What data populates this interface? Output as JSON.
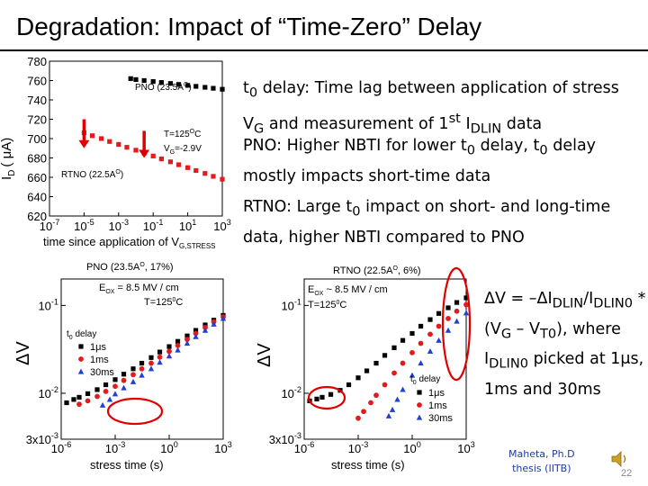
{
  "title": "Degradation: Impact of “Time-Zero” Delay",
  "bullets": {
    "b1": {
      "t": "t",
      "s1": "0",
      "m1": " delay: Time lag between application of stress V",
      "s2": "G",
      "m2": " and measurement of 1",
      "s3": "st",
      "m3": " I",
      "s4": "DLIN",
      "m4": " data"
    },
    "b2": {
      "t": "PNO: Higher NBTI for lower t",
      "s1": "0",
      "m1": " delay, t",
      "s2": "0",
      "m2": " delay mostly impacts short-time data"
    },
    "b3": {
      "t": "RTNO: Large t",
      "s1": "0",
      "m1": " impact on short- and long-time data, higher NBTI compared to PNO"
    },
    "b4": {
      "p1": "ΔV = –ΔI",
      "s1": "DLIN",
      "p2": "/I",
      "s2": "DLIN0",
      "p3": " * (V",
      "s3": "G",
      "p4": " – V",
      "s4": "T0",
      "p5": "), where I",
      "s5": "DLIN0",
      "p6": " picked at 1μs, 1ms and 30ms"
    }
  },
  "credit": {
    "line1": "Maheta, Ph.D",
    "line2": "thesis (IITB)"
  },
  "page_number": "22",
  "colors": {
    "black": "#000000",
    "red": "#e41a1c",
    "blue": "#1f3fd6",
    "annotation_red": "#e00000"
  },
  "chart_data": [
    {
      "type": "scatter",
      "xlabel": "time since application of V",
      "xlabel_sub": "G,STRESS",
      "ylabel": "I",
      "ylabel_sub": "D",
      "ylabel_unit": "( μA)",
      "x_log": true,
      "xlim": [
        1e-07,
        1000.0
      ],
      "ylim": [
        620,
        780
      ],
      "yticks": [
        "780",
        "760",
        "740",
        "720",
        "700",
        "680",
        "660",
        "640",
        "620"
      ],
      "xticks": [
        "10",
        "10",
        "10",
        "10",
        "10",
        "10"
      ],
      "xtick_exp": [
        "-7",
        "-5",
        "-3",
        "-1",
        "1",
        "3"
      ],
      "annotations": {
        "pno": "PNO (23.5A",
        "pno_sup": "O",
        "pno_close": ")",
        "cond1": "T=125",
        "cond1_sup": "O",
        "cond1_end": "C",
        "cond2": "V",
        "cond2_sub": "G",
        "cond2_end": "=-2.9V",
        "rtno": "RTNO (22.5A",
        "rtno_sup": "O",
        "rtno_close": ")"
      },
      "series": [
        {
          "color": "#000000",
          "x": [
            0.005,
            0.01,
            0.03,
            0.1,
            0.3,
            1,
            3,
            10,
            30,
            100,
            300,
            1000
          ],
          "y": [
            762,
            761,
            760,
            759,
            758,
            757,
            756,
            755,
            754,
            753,
            752,
            751
          ]
        },
        {
          "color": "#e41a1c",
          "x": [
            1e-05,
            3e-05,
            0.0001,
            0.0003,
            0.001,
            0.003,
            0.01,
            0.03,
            0.1,
            0.3,
            1,
            3,
            10,
            30,
            100,
            300,
            1000
          ],
          "y": [
            706,
            703,
            700,
            697,
            694,
            691,
            688,
            685,
            682,
            679,
            676,
            673,
            670,
            667,
            664,
            661,
            658
          ]
        }
      ],
      "arrows": [
        {
          "x": 1e-05,
          "y_from": 720,
          "y_to": 690
        },
        {
          "x": 0.03,
          "y_from": 708,
          "y_to": 680
        }
      ]
    },
    {
      "type": "scatter",
      "title": "PNO (23.5A",
      "title_sup": "O",
      "title_end": ", 17%)",
      "xlabel": "stress time (s)",
      "ylabel": "ΔV",
      "x_log": true,
      "y_log": true,
      "xlim": [
        1e-06,
        1000.0
      ],
      "ylim": [
        0.003,
        0.2
      ],
      "ytick_labels": [
        "10",
        "10",
        "3x10"
      ],
      "ytick_exp": [
        "-1",
        "-2",
        "-3"
      ],
      "xtick_labels": [
        "10",
        "10",
        "10",
        "10"
      ],
      "xtick_exp": [
        "-6",
        "-3",
        "0",
        "3"
      ],
      "conditions": {
        "eox": "E",
        "eox_sub": "OX",
        "eox_end": " = 8.5 MV / cm",
        "temp": "T=125",
        "temp_sup": "0",
        "temp_end": "C"
      },
      "legend_title": "t",
      "legend_title_sub": "0",
      "legend_title_end": " delay",
      "series": [
        {
          "name": "1μs",
          "color": "#000000",
          "marker": "square",
          "x": [
            2e-06,
            5e-06,
            1e-05,
            3e-05,
            0.0001,
            0.0003,
            0.001,
            0.003,
            0.01,
            0.03,
            0.1,
            0.3,
            1,
            3,
            10,
            30,
            100,
            300,
            1000
          ],
          "y": [
            0.0078,
            0.0085,
            0.009,
            0.0099,
            0.011,
            0.0125,
            0.0143,
            0.0165,
            0.019,
            0.022,
            0.0255,
            0.0295,
            0.034,
            0.039,
            0.045,
            0.052,
            0.06,
            0.068,
            0.077
          ]
        },
        {
          "name": "1ms",
          "color": "#e41a1c",
          "marker": "circle",
          "x": [
            1e-05,
            3e-05,
            0.0001,
            0.0003,
            0.001,
            0.003,
            0.01,
            0.03,
            0.1,
            0.3,
            1,
            3,
            10,
            30,
            100,
            300,
            1000
          ],
          "y": [
            0.0075,
            0.0082,
            0.0092,
            0.0105,
            0.012,
            0.014,
            0.0163,
            0.019,
            0.022,
            0.0258,
            0.03,
            0.035,
            0.041,
            0.048,
            0.056,
            0.065,
            0.074
          ]
        },
        {
          "name": "30ms",
          "color": "#1f3fd6",
          "marker": "triangle",
          "x": [
            0.0002,
            0.0005,
            0.001,
            0.003,
            0.01,
            0.03,
            0.1,
            0.3,
            1,
            3,
            10,
            30,
            100,
            300,
            1000
          ],
          "y": [
            0.0073,
            0.0085,
            0.0098,
            0.0115,
            0.0135,
            0.016,
            0.019,
            0.0225,
            0.0265,
            0.031,
            0.037,
            0.044,
            0.052,
            0.061,
            0.071
          ]
        }
      ]
    },
    {
      "type": "scatter",
      "title": "RTNO (22.5A",
      "title_sup": "O",
      "title_end": ", 6%)",
      "xlabel": "stress time (s)",
      "ylabel": "ΔV",
      "x_log": true,
      "y_log": true,
      "xlim": [
        1e-06,
        1000.0
      ],
      "ylim": [
        0.003,
        0.2
      ],
      "ytick_labels": [
        "10",
        "10",
        "3x10"
      ],
      "ytick_exp": [
        "-1",
        "-2",
        "-3"
      ],
      "xtick_labels": [
        "10",
        "10",
        "10",
        "10"
      ],
      "xtick_exp": [
        "-6",
        "-3",
        "0",
        "3"
      ],
      "conditions": {
        "eox": "E",
        "eox_sub": "OX",
        "eox_end": " ~ 8.5 MV / cm",
        "temp": "T=125",
        "temp_sup": "0",
        "temp_end": "C"
      },
      "legend_title": "t",
      "legend_title_sub": "0",
      "legend_title_end": " delay",
      "series": [
        {
          "name": "1μs",
          "color": "#000000",
          "marker": "square",
          "x": [
            2e-06,
            5e-06,
            1e-05,
            3e-05,
            0.0001,
            0.0003,
            0.001,
            0.003,
            0.01,
            0.03,
            0.1,
            0.3,
            1,
            3,
            10,
            30,
            100,
            300,
            1000
          ],
          "y": [
            0.0082,
            0.0086,
            0.009,
            0.0097,
            0.0108,
            0.0125,
            0.015,
            0.018,
            0.022,
            0.027,
            0.033,
            0.04,
            0.048,
            0.058,
            0.069,
            0.081,
            0.094,
            0.108,
            0.122
          ]
        },
        {
          "name": "1ms",
          "color": "#e41a1c",
          "marker": "circle",
          "x": [
            0.001,
            0.002,
            0.005,
            0.01,
            0.03,
            0.1,
            0.3,
            1,
            3,
            10,
            30,
            100,
            300,
            1000
          ],
          "y": [
            0.0052,
            0.0062,
            0.0078,
            0.0095,
            0.0125,
            0.017,
            0.022,
            0.029,
            0.037,
            0.047,
            0.058,
            0.071,
            0.086,
            0.102
          ]
        },
        {
          "name": "30ms",
          "color": "#1f3fd6",
          "marker": "triangle",
          "x": [
            0.05,
            0.08,
            0.15,
            0.3,
            1,
            3,
            10,
            30,
            100,
            300,
            1000
          ],
          "y": [
            0.0055,
            0.0065,
            0.0085,
            0.011,
            0.016,
            0.022,
            0.03,
            0.04,
            0.052,
            0.066,
            0.082
          ]
        }
      ]
    }
  ]
}
